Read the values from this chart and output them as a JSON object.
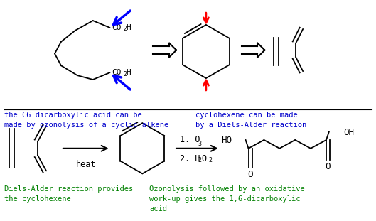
{
  "bg_color": "#ffffff",
  "blue_color": "#0000cc",
  "red_color": "#cc0000",
  "green_color": "#008000",
  "black_color": "#000000",
  "blue_text1": "the C6 dicarboxylic acid can be\nmade by ozonolysis of a cyclic alkene",
  "blue_text2": "cyclohexene can be made\nby a Diels-Alder reaction",
  "green_text1": "Diels-Alder reaction provides\nthe cyclohexene",
  "green_text2": "Ozonolysis followed by an oxidative\nwork-up gives the 1,6-dicarboxylic\nacid",
  "heat_label": "heat",
  "o3_label": "1. O",
  "h2o2_label": "2. H",
  "o3_sub": "3",
  "h2o2_sub": "2",
  "o2_label": "O",
  "co2h": "CO",
  "co2h_sub": "2",
  "co2h_end": "H"
}
